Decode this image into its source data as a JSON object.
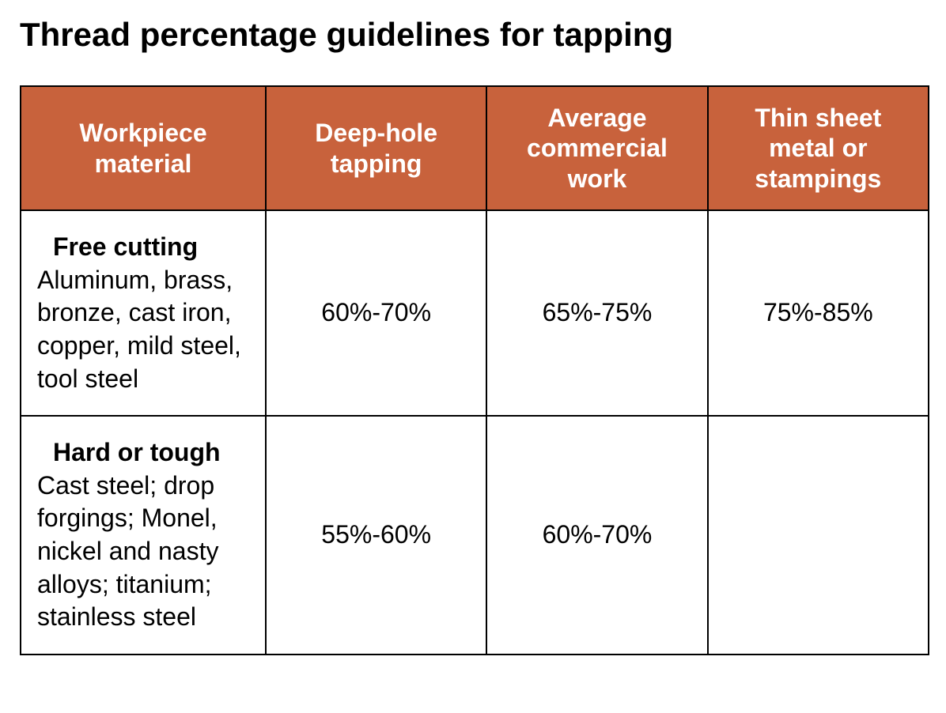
{
  "title": "Thread percentage guidelines for tapping",
  "table": {
    "header_bg": "#c8623c",
    "header_text_color": "#ffffff",
    "border_color": "#000000",
    "cell_bg": "#ffffff",
    "cell_text_color": "#000000",
    "title_fontsize": 42,
    "header_fontsize": 32,
    "cell_fontsize": 32,
    "columns": [
      "Workpiece material",
      "Deep-hole tapping",
      "Average commercial work",
      "Thin sheet metal or stampings"
    ],
    "rows": [
      {
        "material_title": "Free cutting",
        "material_desc": "Aluminum, brass, bronze, cast iron, copper, mild steel, tool steel",
        "deep_hole": "60%-70%",
        "average_commercial": "65%-75%",
        "thin_sheet": "75%-85%"
      },
      {
        "material_title": "Hard or tough",
        "material_desc": "Cast steel; drop forgings; Monel, nickel and nasty alloys; titanium; stainless steel",
        "deep_hole": "55%-60%",
        "average_commercial": "60%-70%",
        "thin_sheet": ""
      }
    ]
  }
}
